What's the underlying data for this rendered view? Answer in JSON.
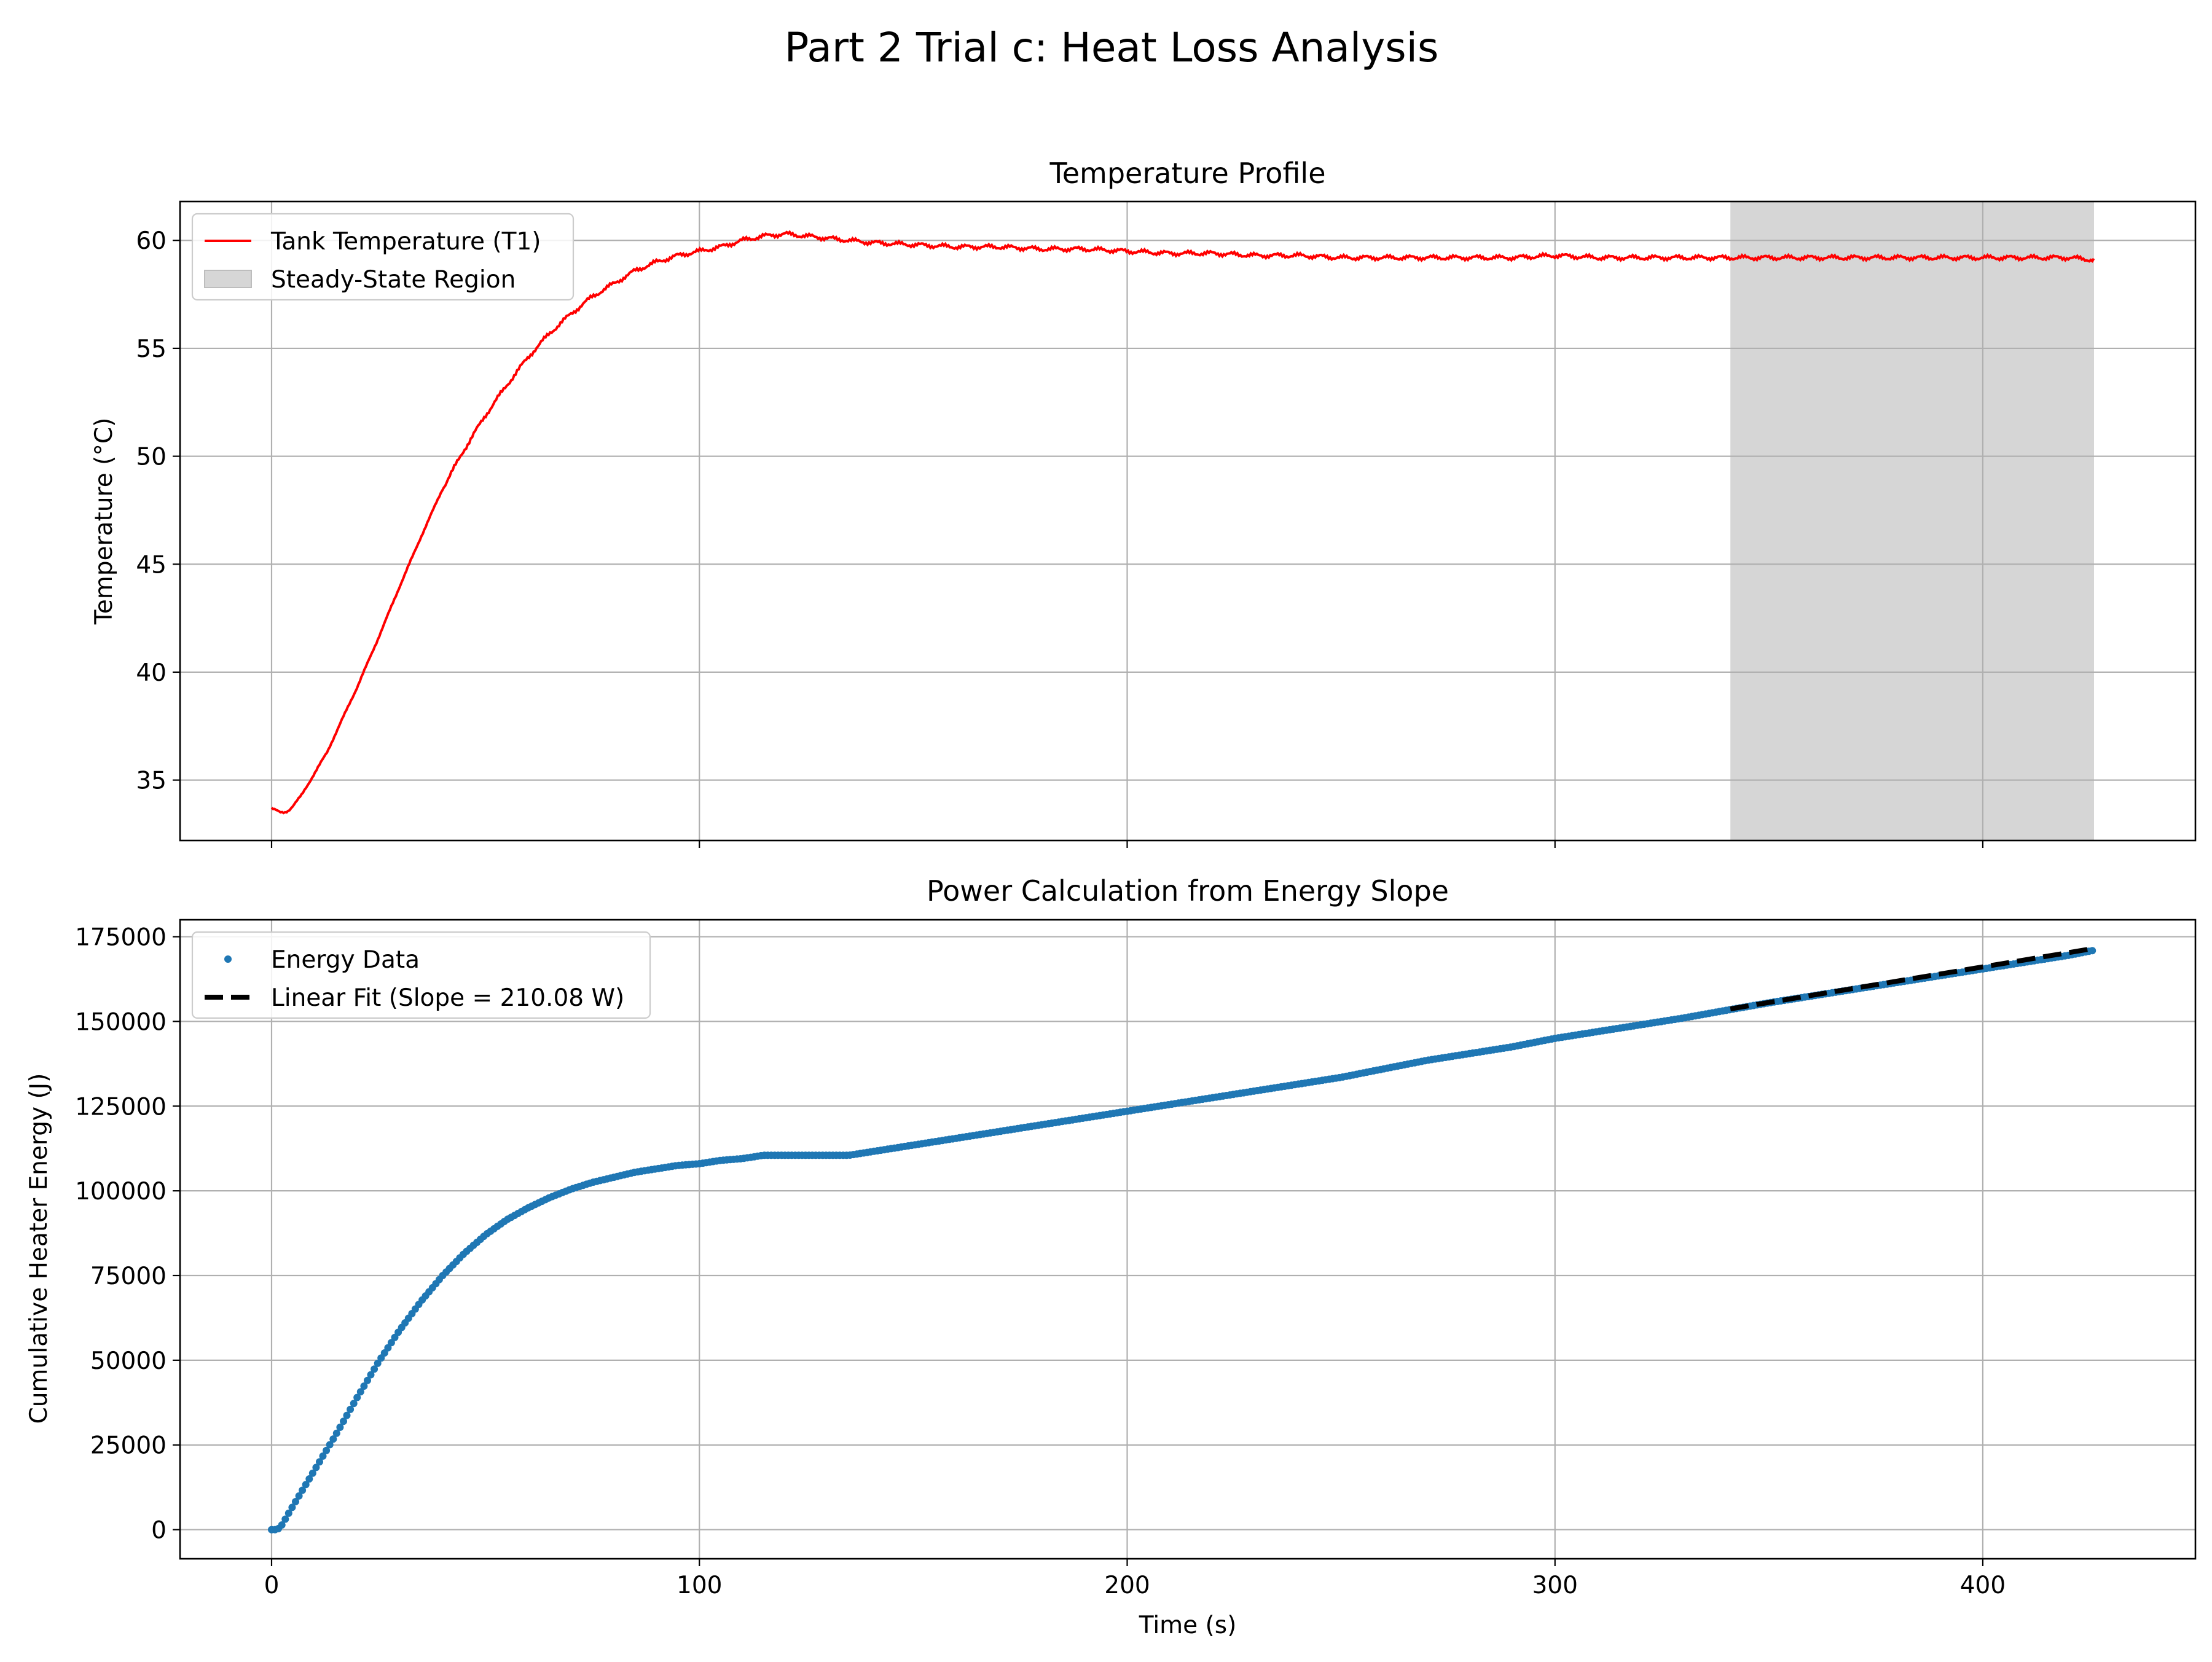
{
  "figure": {
    "suptitle": "Part 2 Trial c: Heat Loss Analysis"
  },
  "chart_data": [
    {
      "type": "line",
      "title": "Temperature Profile",
      "xlabel": "",
      "ylabel": "Temperature (°C)",
      "xlim": [
        -21.4,
        449.7
      ],
      "ylim": [
        32.2,
        61.8
      ],
      "xticks": [
        0,
        100,
        200,
        300,
        400
      ],
      "xtick_labels_shown": false,
      "yticks": [
        35,
        40,
        45,
        50,
        55,
        60
      ],
      "grid": true,
      "legend_location": "upper-left",
      "series": [
        {
          "name": "Tank Temperature (T1)",
          "color": "#ff0000",
          "x": [
            0,
            1,
            2,
            3,
            4,
            5,
            7,
            10,
            13,
            16,
            20,
            25,
            30,
            35,
            40,
            45,
            50,
            55,
            60,
            65,
            70,
            75,
            80,
            85,
            90,
            95,
            100,
            105,
            110,
            115,
            120,
            125,
            130,
            140,
            150,
            160,
            170,
            180,
            190,
            200,
            210,
            220,
            230,
            240,
            250,
            260,
            270,
            280,
            290,
            300,
            310,
            320,
            330,
            340,
            350,
            360,
            370,
            380,
            390,
            400,
            410,
            420,
            426
          ],
          "y": [
            33.7,
            33.6,
            33.5,
            33.5,
            33.6,
            33.8,
            34.3,
            35.3,
            36.3,
            37.6,
            39.3,
            41.6,
            44.0,
            46.3,
            48.5,
            50.3,
            51.9,
            53.3,
            54.6,
            55.7,
            56.6,
            57.4,
            58.0,
            58.6,
            59.0,
            59.3,
            59.5,
            59.7,
            60.0,
            60.2,
            60.3,
            60.2,
            60.1,
            59.9,
            59.8,
            59.7,
            59.7,
            59.6,
            59.6,
            59.5,
            59.4,
            59.4,
            59.3,
            59.3,
            59.2,
            59.2,
            59.2,
            59.2,
            59.2,
            59.3,
            59.2,
            59.2,
            59.2,
            59.2,
            59.2,
            59.2,
            59.2,
            59.2,
            59.2,
            59.2,
            59.2,
            59.2,
            59.1
          ]
        }
      ],
      "shaded_regions": [
        {
          "name": "Steady-State Region",
          "x_start": 341,
          "x_end": 426,
          "color": "#d6d6d6"
        }
      ]
    },
    {
      "type": "scatter",
      "title": "Power Calculation from Energy Slope",
      "xlabel": "Time (s)",
      "ylabel": "Cumulative Heater Energy (J)",
      "xlim": [
        -21.4,
        449.7
      ],
      "ylim": [
        -8600,
        180000
      ],
      "xticks": [
        0,
        100,
        200,
        300,
        400
      ],
      "yticks": [
        0,
        25000,
        50000,
        75000,
        100000,
        125000,
        150000,
        175000
      ],
      "grid": true,
      "legend_location": "upper-left",
      "series": [
        {
          "name": "Energy Data",
          "color": "#1f77b4",
          "x": [
            0,
            1,
            2,
            5,
            10,
            15,
            20,
            25,
            30,
            35,
            40,
            45,
            50,
            55,
            60,
            65,
            70,
            75,
            80,
            85,
            90,
            95,
            100,
            105,
            110,
            115,
            120,
            125,
            130,
            135,
            140,
            150,
            160,
            170,
            180,
            190,
            200,
            210,
            220,
            230,
            240,
            250,
            260,
            270,
            280,
            290,
            300,
            310,
            320,
            330,
            341,
            350,
            360,
            370,
            380,
            390,
            400,
            410,
            420,
            426
          ],
          "y": [
            0,
            0,
            500,
            7000,
            17500,
            28000,
            39000,
            49500,
            59000,
            67500,
            75000,
            81500,
            87000,
            91500,
            95000,
            98000,
            100500,
            102500,
            104000,
            105500,
            106500,
            107500,
            108000,
            109000,
            109500,
            110500,
            110500,
            110500,
            110500,
            110500,
            111500,
            113500,
            115500,
            117500,
            119500,
            121500,
            123500,
            125500,
            127500,
            129500,
            131500,
            133500,
            136000,
            138500,
            140500,
            142500,
            145000,
            147000,
            149000,
            151000,
            153500,
            155500,
            157500,
            159500,
            161500,
            163500,
            165500,
            167500,
            169500,
            171000
          ]
        },
        {
          "name": "Linear Fit (Slope = 210.08 W)",
          "color": "#000000",
          "style": "dashed",
          "slope": 210.08,
          "x": [
            341,
            426
          ],
          "y": [
            153700,
            171557
          ]
        }
      ]
    }
  ]
}
